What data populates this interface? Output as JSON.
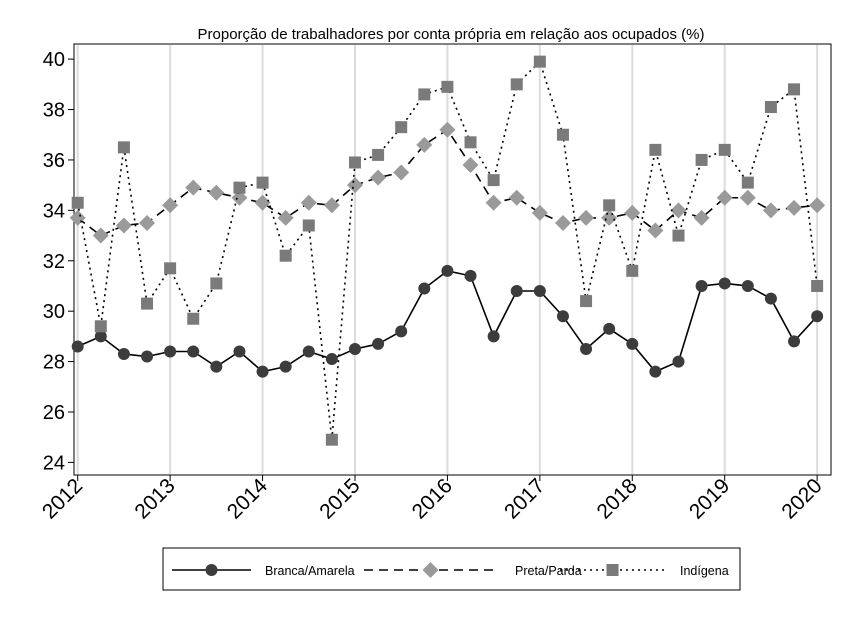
{
  "chart_data": {
    "type": "line",
    "title": "Proporção de trabalhadores por conta própria em relação aos ocupados (%)",
    "xlabel": "",
    "ylabel": "",
    "xlim": [
      2011.96,
      2020.15
    ],
    "ylim": [
      23.5,
      40.6
    ],
    "grid": "vertical",
    "legend_placement": "bottom",
    "x_ticks": [
      2012,
      2013,
      2014,
      2015,
      2016,
      2017,
      2018,
      2019,
      2020
    ],
    "x_tick_labels": [
      "2012",
      "2013",
      "2014",
      "2015",
      "2016",
      "2017",
      "2018",
      "2019",
      "2020"
    ],
    "y_ticks": [
      24,
      26,
      28,
      30,
      32,
      34,
      36,
      38,
      40
    ],
    "y_tick_labels": [
      "24",
      "26",
      "28",
      "30",
      "32",
      "34",
      "36",
      "38",
      "40"
    ],
    "x": [
      2012.0,
      2012.25,
      2012.5,
      2012.75,
      2013.0,
      2013.25,
      2013.5,
      2013.75,
      2014.0,
      2014.25,
      2014.5,
      2014.75,
      2015.0,
      2015.25,
      2015.5,
      2015.75,
      2016.0,
      2016.25,
      2016.5,
      2016.75,
      2017.0,
      2017.25,
      2017.5,
      2017.75,
      2018.0,
      2018.25,
      2018.5,
      2018.75,
      2019.0,
      2019.25,
      2019.5,
      2019.75,
      2020.0
    ],
    "series": [
      {
        "name": "Branca/Amarela",
        "style": "solid",
        "marker": "circle",
        "color": "#3c3c3c",
        "values": [
          28.6,
          29.0,
          28.3,
          28.2,
          28.4,
          28.4,
          27.8,
          28.4,
          27.6,
          27.8,
          28.4,
          28.1,
          28.5,
          28.7,
          29.2,
          30.9,
          31.6,
          31.4,
          29.0,
          30.8,
          30.8,
          29.8,
          28.5,
          29.3,
          28.7,
          27.6,
          28.0,
          31.0,
          31.1,
          31.0,
          30.5,
          28.8,
          29.8
        ]
      },
      {
        "name": "Preta/Parda",
        "style": "dashed",
        "marker": "diamond",
        "color": "#9a9a9a",
        "values": [
          33.7,
          33.0,
          33.4,
          33.5,
          34.2,
          34.9,
          34.7,
          34.5,
          34.3,
          33.7,
          34.3,
          34.2,
          35.0,
          35.3,
          35.5,
          36.6,
          37.2,
          35.8,
          34.3,
          34.5,
          33.9,
          33.5,
          33.7,
          33.7,
          33.9,
          33.2,
          34.0,
          33.7,
          34.5,
          34.5,
          34.0,
          34.1,
          34.2
        ]
      },
      {
        "name": "Indígena",
        "style": "dotted",
        "marker": "square",
        "color": "#7a7a7a",
        "values": [
          34.3,
          29.4,
          36.5,
          30.3,
          31.7,
          29.7,
          31.1,
          34.9,
          35.1,
          32.2,
          33.4,
          24.9,
          35.9,
          36.2,
          37.3,
          38.6,
          38.9,
          36.7,
          35.2,
          39.0,
          39.9,
          37.0,
          30.4,
          34.2,
          31.6,
          36.4,
          33.0,
          36.0,
          36.4,
          35.1,
          38.1,
          38.8,
          31.0
        ]
      }
    ]
  }
}
